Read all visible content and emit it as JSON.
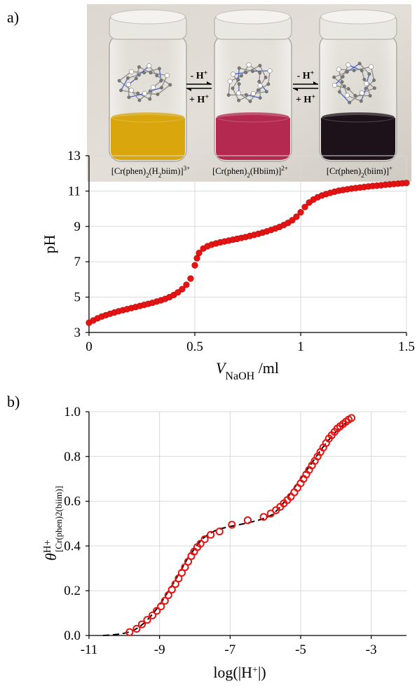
{
  "panel_labels": {
    "a": "a)",
    "b": "b)"
  },
  "photo": {
    "equilibrium_arrows": [
      {
        "top": "- H",
        "top_sup": "+",
        "bottom": "+ H",
        "bottom_sup": "+"
      },
      {
        "top": "- H",
        "top_sup": "+",
        "bottom": "+ H",
        "bottom_sup": "+"
      }
    ],
    "species": [
      {
        "pre": "[Cr(phen)",
        "sub1": "2",
        "mid": "(H",
        "sub2": "2",
        "post": "biim)]",
        "charge": "3+",
        "liquid": "#d9a60e"
      },
      {
        "pre": "[Cr(phen)",
        "sub1": "2",
        "mid": "(Hbiim)]",
        "sub2": "",
        "post": "",
        "charge": "2+",
        "liquid": "#b3294f"
      },
      {
        "pre": "[Cr(phen)",
        "sub1": "2",
        "mid": "(biim)]",
        "sub2": "",
        "post": "",
        "charge": "+",
        "liquid": "#1d1219"
      }
    ]
  },
  "colors": {
    "marker": "#e31414",
    "fit_line": "#000000",
    "grid": "#d9d9d9"
  },
  "chart_data": [
    {
      "type": "scatter",
      "title": "",
      "xlabel": "V",
      "xlabel_sub": "NaOH",
      "xlabel_unit": " /ml",
      "ylabel": "pH",
      "xlim": [
        0,
        1.5
      ],
      "ylim": [
        3,
        13
      ],
      "xticks": [
        0,
        0.5,
        1,
        1.5
      ],
      "xtick_labels": [
        "0",
        "0.5",
        "1",
        "1.5"
      ],
      "yticks": [
        3,
        5,
        7,
        9,
        11,
        13
      ],
      "ytick_labels": [
        "3",
        "5",
        "7",
        "9",
        "11",
        "13"
      ],
      "grid": true,
      "marker": "filled-circle",
      "series": [
        {
          "x": [
            0,
            0.02,
            0.04,
            0.06,
            0.08,
            0.1,
            0.12,
            0.14,
            0.16,
            0.18,
            0.2,
            0.22,
            0.24,
            0.26,
            0.28,
            0.3,
            0.32,
            0.34,
            0.36,
            0.38,
            0.4,
            0.42,
            0.44,
            0.46,
            0.48,
            0.5,
            0.51,
            0.52,
            0.54,
            0.56,
            0.58,
            0.6,
            0.62,
            0.64,
            0.66,
            0.68,
            0.7,
            0.72,
            0.74,
            0.76,
            0.78,
            0.8,
            0.82,
            0.84,
            0.86,
            0.88,
            0.9,
            0.92,
            0.94,
            0.96,
            0.98,
            1.0,
            1.02,
            1.04,
            1.06,
            1.08,
            1.1,
            1.12,
            1.14,
            1.16,
            1.18,
            1.2,
            1.22,
            1.24,
            1.26,
            1.28,
            1.3,
            1.32,
            1.34,
            1.36,
            1.38,
            1.4,
            1.42,
            1.44,
            1.46,
            1.48,
            1.5
          ],
          "y": [
            3.55,
            3.68,
            3.8,
            3.9,
            3.98,
            4.06,
            4.13,
            4.2,
            4.26,
            4.32,
            4.38,
            4.44,
            4.5,
            4.56,
            4.62,
            4.68,
            4.75,
            4.82,
            4.9,
            5.0,
            5.12,
            5.27,
            5.45,
            5.7,
            6.05,
            6.8,
            7.2,
            7.5,
            7.75,
            7.88,
            7.97,
            8.04,
            8.1,
            8.15,
            8.2,
            8.25,
            8.3,
            8.35,
            8.4,
            8.46,
            8.52,
            8.58,
            8.65,
            8.72,
            8.8,
            8.88,
            8.97,
            9.08,
            9.2,
            9.35,
            9.55,
            9.8,
            10.1,
            10.35,
            10.52,
            10.65,
            10.75,
            10.83,
            10.9,
            10.96,
            11.02,
            11.06,
            11.1,
            11.14,
            11.17,
            11.2,
            11.23,
            11.26,
            11.29,
            11.31,
            11.33,
            11.36,
            11.38,
            11.4,
            11.42,
            11.44,
            11.46
          ]
        }
      ]
    },
    {
      "type": "scatter",
      "title": "",
      "xlabel": "log(|H",
      "xlabel_sup": "+",
      "xlabel_end": "|)",
      "ylabel": "θ",
      "ylabel_sup": "H+",
      "ylabel_sub": "[Cr(phen)2(biim)]",
      "xlim": [
        -11,
        -2
      ],
      "ylim": [
        0,
        1
      ],
      "xticks": [
        -11,
        -9,
        -7,
        -5,
        -3
      ],
      "xtick_labels": [
        "-11",
        "-9",
        "-7",
        "-5",
        "-3"
      ],
      "yticks": [
        0,
        0.2,
        0.4,
        0.6,
        0.8,
        1.0
      ],
      "ytick_labels": [
        "0.0",
        "0.2",
        "0.4",
        "0.6",
        "0.8",
        "1.0"
      ],
      "grid": true,
      "series": [
        {
          "marker": "open-circle",
          "x": [
            -9.85,
            -9.65,
            -9.5,
            -9.35,
            -9.2,
            -9.08,
            -8.96,
            -8.85,
            -8.75,
            -8.65,
            -8.55,
            -8.46,
            -8.37,
            -8.28,
            -8.19,
            -8.1,
            -8.02,
            -7.93,
            -7.84,
            -7.72,
            -7.55,
            -7.3,
            -6.95,
            -6.5,
            -6.05,
            -5.85,
            -5.7,
            -5.58,
            -5.48,
            -5.38,
            -5.28,
            -5.18,
            -5.09,
            -5.0,
            -4.92,
            -4.84,
            -4.76,
            -4.68,
            -4.6,
            -4.52,
            -4.44,
            -4.36,
            -4.28,
            -4.2,
            -4.12,
            -4.04,
            -3.96,
            -3.88,
            -3.8,
            -3.72,
            -3.64,
            -3.56
          ],
          "y": [
            0.015,
            0.03,
            0.05,
            0.07,
            0.09,
            0.11,
            0.13,
            0.155,
            0.18,
            0.205,
            0.23,
            0.255,
            0.28,
            0.305,
            0.33,
            0.355,
            0.375,
            0.395,
            0.41,
            0.43,
            0.45,
            0.465,
            0.495,
            0.515,
            0.53,
            0.545,
            0.56,
            0.575,
            0.59,
            0.605,
            0.62,
            0.64,
            0.66,
            0.68,
            0.7,
            0.72,
            0.74,
            0.76,
            0.78,
            0.8,
            0.82,
            0.84,
            0.86,
            0.88,
            0.895,
            0.91,
            0.925,
            0.935,
            0.945,
            0.955,
            0.965,
            0.972
          ]
        },
        {
          "marker": "dashed-line",
          "x": [
            -10.6,
            -10.4,
            -10.2,
            -10.0,
            -9.8,
            -9.6,
            -9.4,
            -9.2,
            -9.0,
            -8.8,
            -8.6,
            -8.4,
            -8.2,
            -8.0,
            -7.8,
            -7.6,
            -7.4,
            -7.2,
            -7.0,
            -6.8,
            -6.6,
            -6.4,
            -6.2,
            -6.0,
            -5.8,
            -5.6,
            -5.4,
            -5.2,
            -5.0,
            -4.8,
            -4.6,
            -4.4,
            -4.2,
            -4.0,
            -3.8,
            -3.6
          ],
          "y": [
            0.0,
            0.002,
            0.005,
            0.01,
            0.018,
            0.035,
            0.06,
            0.095,
            0.135,
            0.185,
            0.235,
            0.29,
            0.345,
            0.39,
            0.43,
            0.455,
            0.47,
            0.48,
            0.487,
            0.493,
            0.5,
            0.507,
            0.515,
            0.525,
            0.54,
            0.57,
            0.61,
            0.655,
            0.7,
            0.745,
            0.79,
            0.835,
            0.875,
            0.91,
            0.94,
            0.965
          ]
        }
      ]
    }
  ]
}
